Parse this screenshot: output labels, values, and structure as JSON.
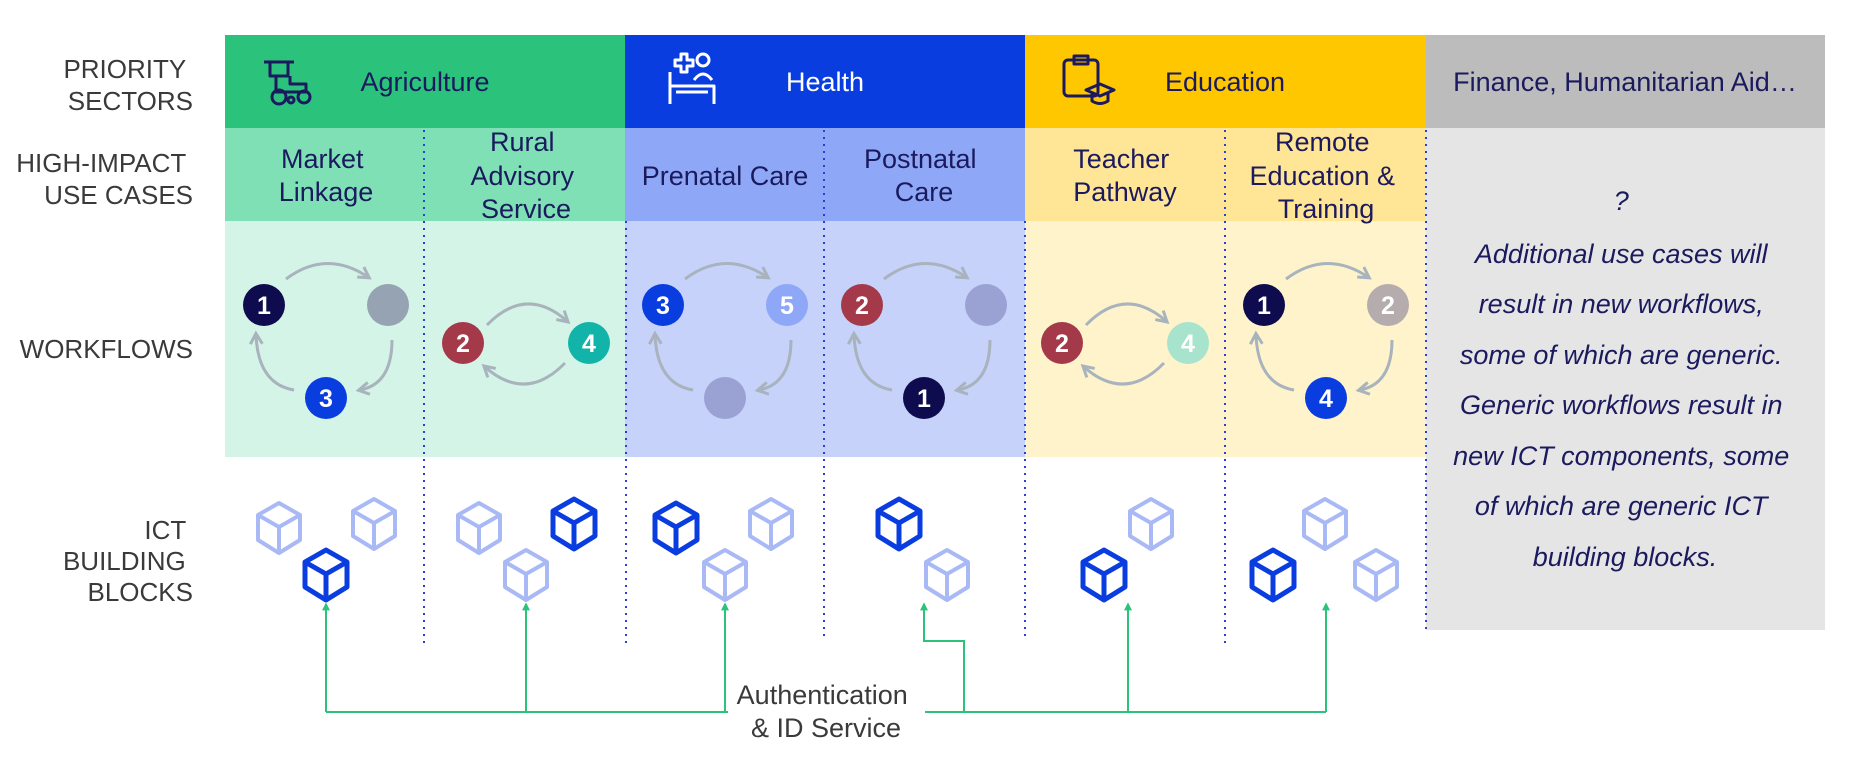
{
  "row_labels": {
    "priority_sectors": [
      "PRIORITY",
      "SECTORS"
    ],
    "use_cases": [
      "HIGH-IMPACT",
      "USE CASES"
    ],
    "workflows": [
      "WORKFLOWS"
    ],
    "building_blocks": [
      "ICT",
      "BUILDING",
      "BLOCKS"
    ]
  },
  "sectors": [
    {
      "name": "Agriculture",
      "icon": "tractor-icon",
      "color": "#2bc37c",
      "light": "#7fe0b6",
      "bg": "#d3f4e6"
    },
    {
      "name": "Health",
      "icon": "patient-bed-icon",
      "color": "#0a3de0",
      "light": "#8ea8f7",
      "bg": "#c6d2fa"
    },
    {
      "name": "Education",
      "icon": "graduation-board-icon",
      "color": "#ffc700",
      "light": "#ffe596",
      "bg": "#fff3cc"
    },
    {
      "name": "Finance, Humanitarian Aid…",
      "color": "#bcbcbc",
      "bg": "#e5e5e5"
    }
  ],
  "use_cases": [
    {
      "lines": [
        "Market",
        "Linkage"
      ]
    },
    {
      "lines": [
        "Rural",
        "Advisory",
        "Service"
      ]
    },
    {
      "lines": [
        "Prenatal Care"
      ]
    },
    {
      "lines": [
        "Postnatal",
        "Care"
      ]
    },
    {
      "lines": [
        "Teacher",
        "Pathway"
      ]
    },
    {
      "lines": [
        "Remote",
        "Education &",
        "Training"
      ]
    }
  ],
  "workflows": [
    {
      "type": "cycle3",
      "nodes": [
        {
          "label": "1",
          "color": "#0e0b4e"
        },
        {
          "label": "",
          "color": "#96a3b3"
        },
        {
          "label": "3",
          "color": "#0a3de0"
        }
      ]
    },
    {
      "type": "cycle2",
      "nodes": [
        {
          "label": "2",
          "color": "#a4394a"
        },
        {
          "label": "4",
          "color": "#12b3a8"
        }
      ]
    },
    {
      "type": "cycle3",
      "nodes": [
        {
          "label": "3",
          "color": "#0a3de0"
        },
        {
          "label": "5",
          "color": "#8ea8f7"
        },
        {
          "label": "",
          "color": "#9aa2d4"
        }
      ]
    },
    {
      "type": "cycle3",
      "nodes": [
        {
          "label": "2",
          "color": "#a4394a"
        },
        {
          "label": "",
          "color": "#9aa2d4"
        },
        {
          "label": "1",
          "color": "#0e0b4e"
        }
      ]
    },
    {
      "type": "cycle2",
      "nodes": [
        {
          "label": "2",
          "color": "#a4394a"
        },
        {
          "label": "4",
          "color": "#a8e3cd"
        }
      ]
    },
    {
      "type": "cycle3",
      "nodes": [
        {
          "label": "1",
          "color": "#0e0b4e"
        },
        {
          "label": "2",
          "color": "#b5adad"
        },
        {
          "label": "4",
          "color": "#0a3de0"
        }
      ]
    }
  ],
  "note": {
    "lines": [
      "?",
      "Additional use cases will",
      "result in new workflows,",
      "some of which are generic.",
      "Generic workflows result in",
      "new ICT components, some",
      "of which are generic ICT",
      "building blocks."
    ]
  },
  "auth_service": [
    "Authentication",
    "& ID Service"
  ],
  "colors": {
    "block_dark": "#0a3de0",
    "block_light": "#a9b9f5",
    "connector": "#2bc37c",
    "divider": "#2a3fd8",
    "arrow": "#a8b3bd"
  }
}
